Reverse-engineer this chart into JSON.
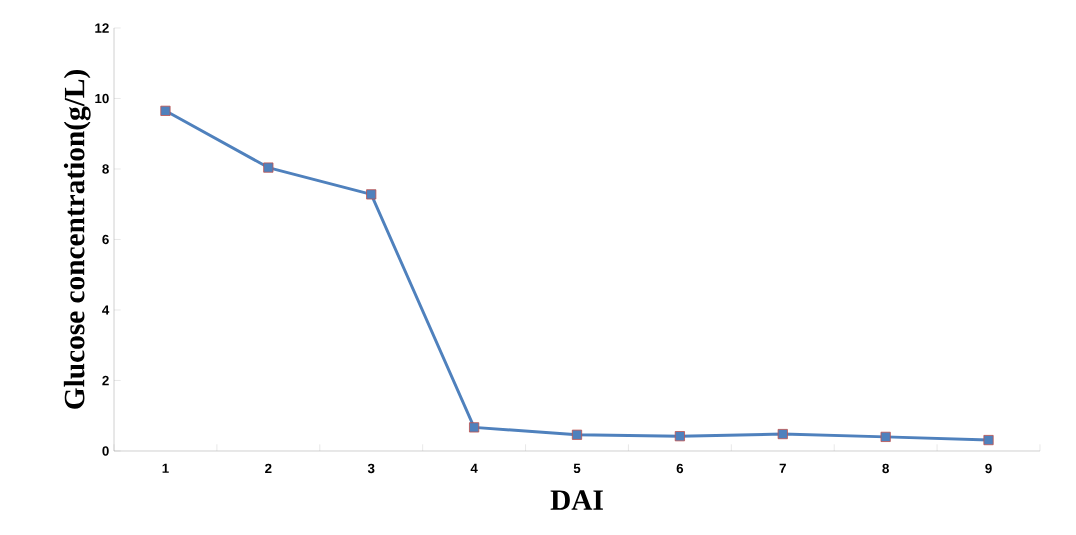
{
  "chart_data": {
    "type": "line",
    "xlabel": "DAI",
    "ylabel": "Glucose concentration(g/L)",
    "categories": [
      "1",
      "2",
      "3",
      "4",
      "5",
      "6",
      "7",
      "8",
      "9"
    ],
    "values": [
      9.65,
      8.04,
      7.28,
      0.67,
      0.46,
      0.42,
      0.48,
      0.4,
      0.31
    ],
    "color": "#4f81bd",
    "marker": "square",
    "line_style": "solid",
    "grid": false,
    "ylim": [
      0,
      12
    ],
    "yticks": [
      0,
      2,
      4,
      6,
      8,
      10,
      12
    ]
  }
}
